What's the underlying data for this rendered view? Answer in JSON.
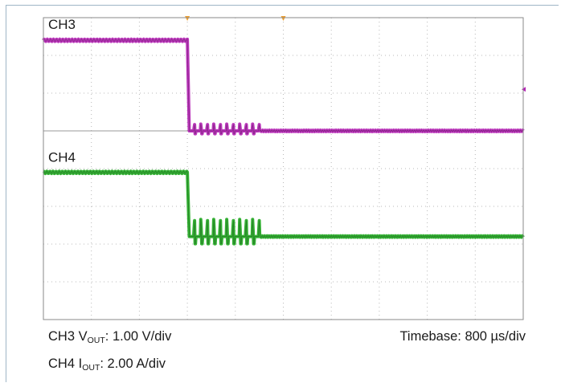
{
  "chart_data": {
    "type": "line",
    "title": "",
    "divisions": {
      "x": 10,
      "y": 8
    },
    "channel_labels": [
      "CH3",
      "CH4"
    ],
    "series": [
      {
        "name": "CH3",
        "color": "#b321b3",
        "x_div": [
          0,
          3.0,
          3.02,
          3.08,
          4.5,
          10.0
        ],
        "y_div": [
          7.4,
          7.4,
          5.0,
          5.0,
          5.0,
          5.0
        ],
        "ripple_window_div": [
          3.0,
          4.5
        ]
      },
      {
        "name": "CH4",
        "color": "#1fa81f",
        "x_div": [
          0,
          3.0,
          3.02,
          3.08,
          4.5,
          10.0
        ],
        "y_div": [
          3.9,
          3.9,
          2.2,
          2.2,
          2.2,
          2.2
        ],
        "ripple_window_div": [
          3.0,
          4.5
        ]
      }
    ],
    "markers": [
      {
        "name": "trigger-marker",
        "x_div": 3.0,
        "color": "#f0a030"
      },
      {
        "name": "time-reference-marker",
        "x_div": 5.0,
        "color": "#f0a030"
      }
    ],
    "grid": true
  },
  "captions": {
    "ch3_prefix": "CH3 V",
    "ch3_sub": "OUT",
    "ch3_suffix": ": 1.00 V/div",
    "ch4_prefix": "CH4 I",
    "ch4_sub": "OUT",
    "ch4_suffix": ": 2.00 A/div",
    "timebase": "Timebase: 800 µs/div"
  }
}
